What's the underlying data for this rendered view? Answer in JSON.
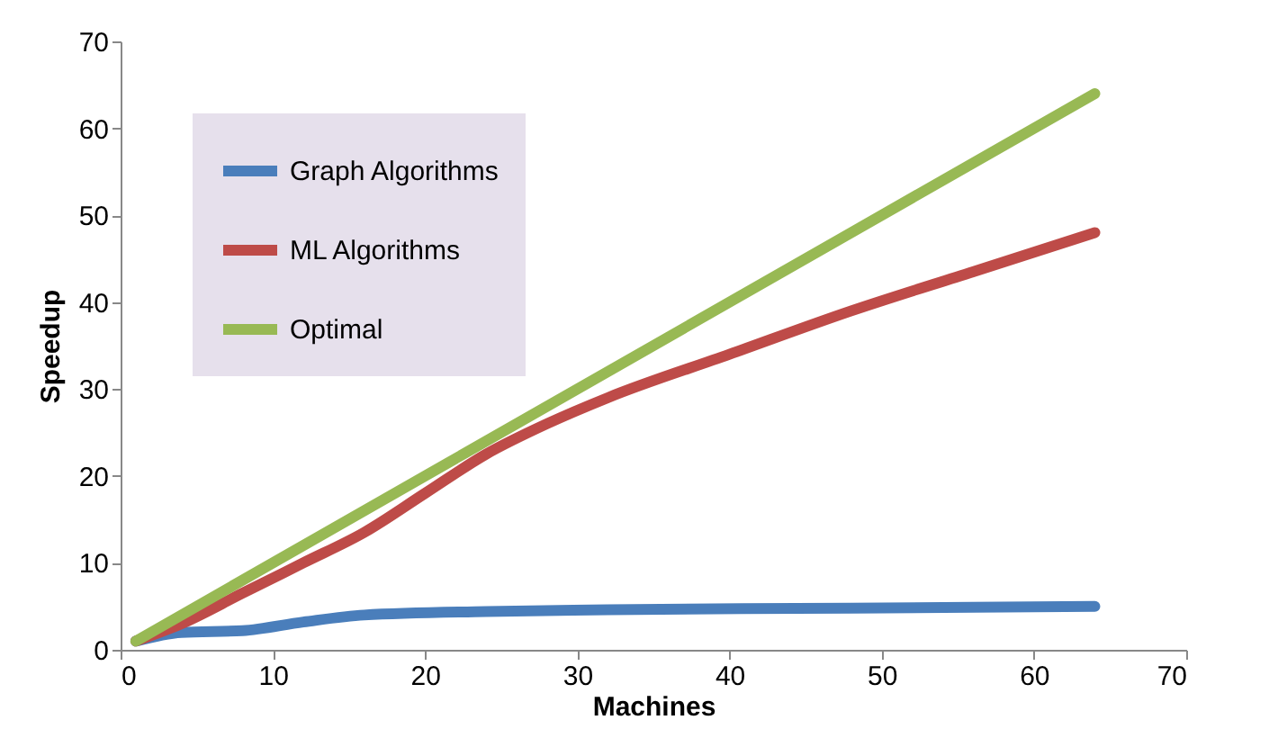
{
  "chart_data": {
    "type": "line",
    "xlabel": "Machines",
    "ylabel": "Speedup",
    "xlim": [
      0,
      70
    ],
    "ylim": [
      0,
      70
    ],
    "xticks": [
      0,
      10,
      20,
      30,
      40,
      50,
      60,
      70
    ],
    "yticks": [
      0,
      10,
      20,
      30,
      40,
      50,
      60,
      70
    ],
    "grid": false,
    "legend": "top left",
    "marker": "none",
    "line_style": "solid",
    "series": [
      {
        "name": "Graph Algorithms",
        "color": "#4a7ebb",
        "x": [
          1,
          4,
          8,
          12,
          16,
          24,
          32,
          48,
          64
        ],
        "values": [
          1,
          2,
          2.2,
          3.2,
          4,
          4.4,
          4.6,
          4.8,
          5
        ]
      },
      {
        "name": "ML Algorithms",
        "color": "#be4b48",
        "x": [
          1,
          4,
          8,
          12,
          16,
          20,
          24,
          28,
          32,
          40,
          48,
          56,
          64
        ],
        "values": [
          1,
          3,
          6.5,
          10,
          13.5,
          18,
          22.5,
          26,
          29,
          34,
          39,
          43.5,
          48
        ]
      },
      {
        "name": "Optimal",
        "color": "#98b954",
        "x": [
          1,
          64
        ],
        "values": [
          1,
          64
        ]
      }
    ]
  }
}
